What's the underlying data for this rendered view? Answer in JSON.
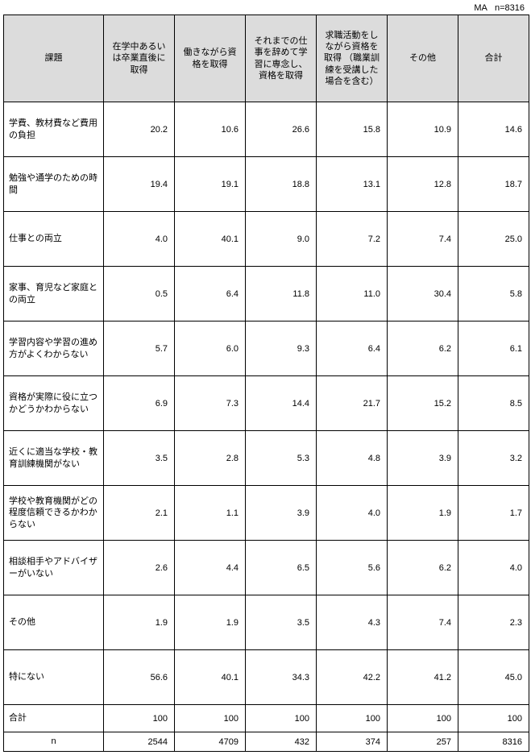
{
  "meta": {
    "label": "MA   n=8316"
  },
  "table": {
    "row_header_label": "課題",
    "columns": [
      "在学中あるいは卒業直後に取得",
      "働きながら資格を取得",
      "それまでの仕事を辞めて学習に専念し、資格を取得",
      "求職活動をしながら資格を取得\n（職業訓練を受講した場合を含む）",
      "その他",
      "合計"
    ],
    "rows": [
      {
        "label": "学費、教材費など費用の負担",
        "values": [
          "20.2",
          "10.6",
          "26.6",
          "15.8",
          "10.9",
          "14.6"
        ]
      },
      {
        "label": "勉強や通学のための時間",
        "values": [
          "19.4",
          "19.1",
          "18.8",
          "13.1",
          "12.8",
          "18.7"
        ]
      },
      {
        "label": "仕事との両立",
        "values": [
          "4.0",
          "40.1",
          "9.0",
          "7.2",
          "7.4",
          "25.0"
        ]
      },
      {
        "label": "家事、育児など家庭との両立",
        "values": [
          "0.5",
          "6.4",
          "11.8",
          "11.0",
          "30.4",
          "5.8"
        ]
      },
      {
        "label": "学習内容や学習の進め方がよくわからない",
        "values": [
          "5.7",
          "6.0",
          "9.3",
          "6.4",
          "6.2",
          "6.1"
        ]
      },
      {
        "label": "資格が実際に役に立つかどうかわからない",
        "values": [
          "6.9",
          "7.3",
          "14.4",
          "21.7",
          "15.2",
          "8.5"
        ]
      },
      {
        "label": "近くに適当な学校・教育訓練機関がない",
        "values": [
          "3.5",
          "2.8",
          "5.3",
          "4.8",
          "3.9",
          "3.2"
        ]
      },
      {
        "label": "学校や教育機関がどの程度信頼できるかわからない",
        "values": [
          "2.1",
          "1.1",
          "3.9",
          "4.0",
          "1.9",
          "1.7"
        ]
      },
      {
        "label": "相談相手やアドバイザーがいない",
        "values": [
          "2.6",
          "4.4",
          "6.5",
          "5.6",
          "6.2",
          "4.0"
        ]
      },
      {
        "label": "その他",
        "values": [
          "1.9",
          "1.9",
          "3.5",
          "4.3",
          "7.4",
          "2.3"
        ]
      },
      {
        "label": "特にない",
        "values": [
          "56.6",
          "40.1",
          "34.3",
          "42.2",
          "41.2",
          "45.0"
        ]
      }
    ],
    "total_row": {
      "label": "合計",
      "values": [
        "100",
        "100",
        "100",
        "100",
        "100",
        "100"
      ]
    },
    "n_row": {
      "label": "n",
      "values": [
        "2544",
        "4709",
        "432",
        "374",
        "257",
        "8316"
      ]
    }
  }
}
